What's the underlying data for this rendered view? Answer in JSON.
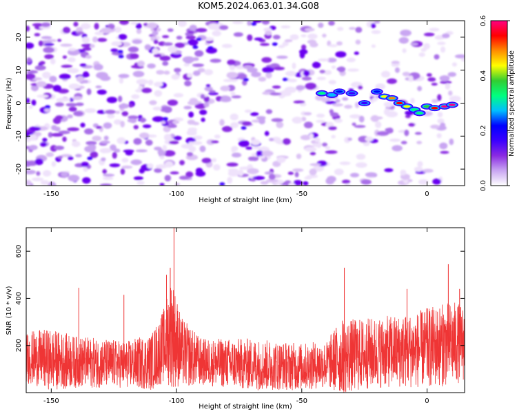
{
  "title": "KOM5.2024.063.01.34.G08",
  "chart_data": [
    {
      "type": "heatmap",
      "xlabel": "Height of straight line (km)",
      "ylabel": "Frequency (Hz)",
      "xlim": [
        -160,
        15
      ],
      "ylim": [
        -25,
        25
      ],
      "x_ticks": [
        -150,
        -100,
        -50,
        0
      ],
      "y_ticks": [
        -20,
        -10,
        0,
        10,
        20
      ],
      "colorbar": {
        "label": "Normalized spectral amplitude",
        "ticks": [
          "0.0",
          "0.2",
          "0.4",
          "0.6"
        ],
        "range": [
          0,
          0.6
        ],
        "colors": [
          "#ffffff",
          "#c9a6f2",
          "#8a2be2",
          "#3b00ff",
          "#0000ff",
          "#00bfff",
          "#00ff7f",
          "#32cd32",
          "#ffff00",
          "#ff8c00",
          "#ff0000",
          "#ff0080"
        ]
      },
      "signal_track": [
        {
          "x": -42,
          "y": 3,
          "v": 0.3
        },
        {
          "x": -38,
          "y": 2.5,
          "v": 0.25
        },
        {
          "x": -35,
          "y": 3.5,
          "v": 0.2
        },
        {
          "x": -30,
          "y": 3,
          "v": 0.15
        },
        {
          "x": -25,
          "y": 0,
          "v": 0.15
        },
        {
          "x": -20,
          "y": 3.5,
          "v": 0.2
        },
        {
          "x": -17,
          "y": 2,
          "v": 0.45
        },
        {
          "x": -14,
          "y": 1.5,
          "v": 0.5
        },
        {
          "x": -11,
          "y": 0,
          "v": 0.55
        },
        {
          "x": -8,
          "y": -1,
          "v": 0.45
        },
        {
          "x": -5,
          "y": -2,
          "v": 0.35
        },
        {
          "x": -3,
          "y": -3,
          "v": 0.3
        },
        {
          "x": 0,
          "y": -1,
          "v": 0.4
        },
        {
          "x": 3,
          "y": -1.5,
          "v": 0.55
        },
        {
          "x": 7,
          "y": -1,
          "v": 0.6
        },
        {
          "x": 10,
          "y": -0.5,
          "v": 0.6
        }
      ]
    },
    {
      "type": "line",
      "xlabel": "Height of straight line (km)",
      "ylabel": "SNR (10 * v/v)",
      "xlim": [
        -160,
        15
      ],
      "ylim": [
        0,
        700
      ],
      "x_ticks": [
        -150,
        -100,
        -50,
        0
      ],
      "y_ticks": [
        200,
        400,
        600
      ],
      "color": "#ef3535",
      "series_profile": [
        {
          "x": -160,
          "mean": 150,
          "amp": 110
        },
        {
          "x": -150,
          "mean": 140,
          "amp": 130
        },
        {
          "x": -140,
          "mean": 130,
          "amp": 110
        },
        {
          "x": -120,
          "mean": 120,
          "amp": 100
        },
        {
          "x": -110,
          "mean": 130,
          "amp": 120
        },
        {
          "x": -105,
          "mean": 200,
          "amp": 160
        },
        {
          "x": -102,
          "mean": 260,
          "amp": 240
        },
        {
          "x": -98,
          "mean": 170,
          "amp": 150
        },
        {
          "x": -90,
          "mean": 130,
          "amp": 100
        },
        {
          "x": -70,
          "mean": 120,
          "amp": 110
        },
        {
          "x": -50,
          "mean": 110,
          "amp": 100
        },
        {
          "x": -40,
          "mean": 120,
          "amp": 100
        },
        {
          "x": -35,
          "mean": 150,
          "amp": 160
        },
        {
          "x": -20,
          "mean": 170,
          "amp": 150
        },
        {
          "x": -5,
          "mean": 180,
          "amp": 160
        },
        {
          "x": 0,
          "mean": 190,
          "amp": 170
        },
        {
          "x": 10,
          "mean": 210,
          "amp": 180
        },
        {
          "x": 15,
          "mean": 210,
          "amp": 160
        }
      ],
      "peaks": [
        {
          "x": -101,
          "y": 700
        },
        {
          "x": -102.5,
          "y": 530
        },
        {
          "x": -104,
          "y": 500
        },
        {
          "x": -139,
          "y": 445
        },
        {
          "x": -121,
          "y": 415
        },
        {
          "x": -33,
          "y": 530
        },
        {
          "x": 8.5,
          "y": 545
        },
        {
          "x": -8,
          "y": 440
        },
        {
          "x": 13,
          "y": 440
        }
      ]
    }
  ]
}
